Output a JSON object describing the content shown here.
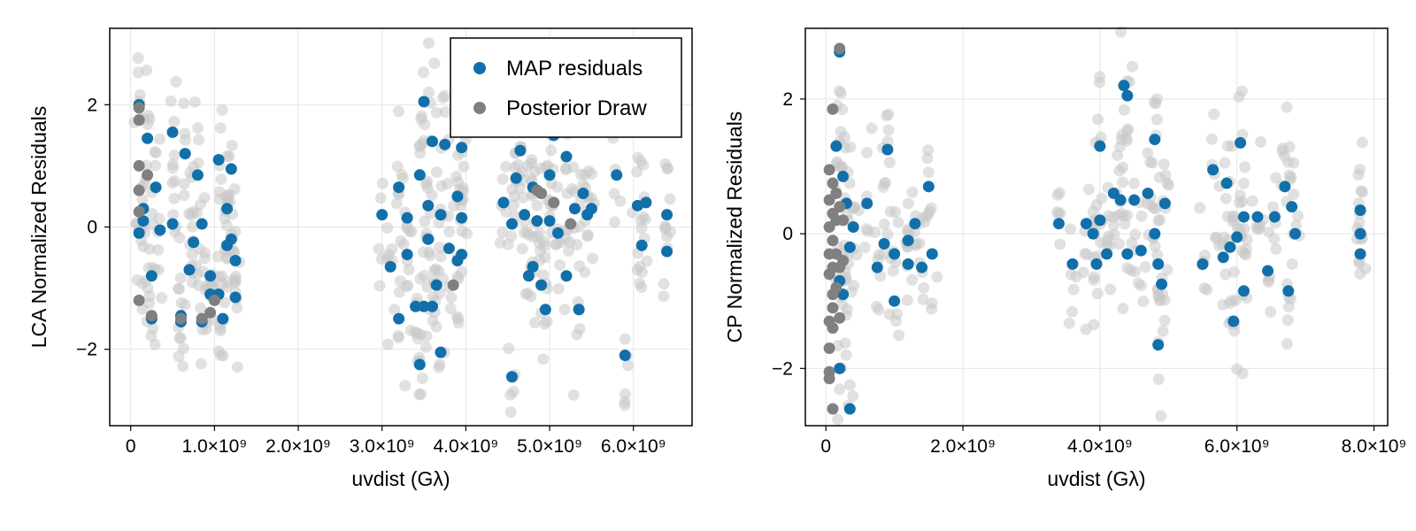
{
  "legend": {
    "entries": [
      {
        "label": "MAP residuals",
        "color": "#1170aa"
      },
      {
        "label": "Posterior Draw",
        "color": "#808080"
      }
    ],
    "placement": "top-right of left panel"
  },
  "colors": {
    "map": "#1170aa",
    "draw": "#808080",
    "cloud": "#c8c8c8",
    "grid": "#e5e5e5"
  },
  "chart_data": [
    {
      "type": "scatter",
      "xlabel": "uvdist (Gλ)",
      "ylabel": "LCA Normalized Residuals",
      "xlim": [
        -250000000.0,
        6700000000.0
      ],
      "ylim": [
        -3.25,
        3.25
      ],
      "xticks": [
        0,
        1000000000.0,
        2000000000.0,
        3000000000.0,
        4000000000.0,
        5000000000.0,
        6000000000.0
      ],
      "xtick_labels": [
        "0",
        "1.0×10⁹",
        "2.0×10⁹",
        "3.0×10⁹",
        "4.0×10⁹",
        "5.0×10⁹",
        "6.0×10⁹"
      ],
      "yticks": [
        -2,
        0,
        2
      ],
      "ytick_labels": [
        "−2",
        "0",
        "2"
      ],
      "grid": true,
      "series": [
        {
          "name": "MAP residuals",
          "points": [
            [
              100000000.0,
              2.0
            ],
            [
              100000000.0,
              -0.1
            ],
            [
              150000000.0,
              0.3
            ],
            [
              150000000.0,
              0.1
            ],
            [
              200000000.0,
              1.45
            ],
            [
              250000000.0,
              -0.8
            ],
            [
              250000000.0,
              -1.5
            ],
            [
              300000000.0,
              0.65
            ],
            [
              350000000.0,
              -0.05
            ],
            [
              500000000.0,
              1.55
            ],
            [
              500000000.0,
              0.05
            ],
            [
              600000000.0,
              -1.45
            ],
            [
              600000000.0,
              -1.55
            ],
            [
              650000000.0,
              1.2
            ],
            [
              700000000.0,
              -0.7
            ],
            [
              750000000.0,
              -0.25
            ],
            [
              800000000.0,
              0.85
            ],
            [
              850000000.0,
              0.05
            ],
            [
              850000000.0,
              -1.55
            ],
            [
              950000000.0,
              -0.8
            ],
            [
              950000000.0,
              -1.1
            ],
            [
              1050000000.0,
              1.1
            ],
            [
              1050000000.0,
              -1.1
            ],
            [
              1100000000.0,
              -1.5
            ],
            [
              1150000000.0,
              0.3
            ],
            [
              1150000000.0,
              -0.3
            ],
            [
              1200000000.0,
              0.95
            ],
            [
              1200000000.0,
              -0.2
            ],
            [
              1250000000.0,
              -0.55
            ],
            [
              1250000000.0,
              -1.15
            ],
            [
              3000000000.0,
              0.2
            ],
            [
              3100000000.0,
              -0.65
            ],
            [
              3200000000.0,
              -1.5
            ],
            [
              3200000000.0,
              0.65
            ],
            [
              3300000000.0,
              0.15
            ],
            [
              3300000000.0,
              -0.45
            ],
            [
              3400000000.0,
              -1.3
            ],
            [
              3450000000.0,
              0.85
            ],
            [
              3450000000.0,
              -2.25
            ],
            [
              3500000000.0,
              2.05
            ],
            [
              3500000000.0,
              -1.3
            ],
            [
              3550000000.0,
              0.35
            ],
            [
              3550000000.0,
              -0.2
            ],
            [
              3600000000.0,
              1.4
            ],
            [
              3600000000.0,
              -1.3
            ],
            [
              3650000000.0,
              -0.95
            ],
            [
              3700000000.0,
              0.2
            ],
            [
              3700000000.0,
              -2.05
            ],
            [
              3750000000.0,
              1.35
            ],
            [
              3800000000.0,
              -0.35
            ],
            [
              3900000000.0,
              0.5
            ],
            [
              3900000000.0,
              -0.55
            ],
            [
              3950000000.0,
              1.3
            ],
            [
              3950000000.0,
              0.15
            ],
            [
              3950000000.0,
              -0.45
            ],
            [
              4450000000.0,
              0.4
            ],
            [
              4550000000.0,
              0.05
            ],
            [
              4550000000.0,
              -2.45
            ],
            [
              4600000000.0,
              0.8
            ],
            [
              4650000000.0,
              1.25
            ],
            [
              4700000000.0,
              0.2
            ],
            [
              4750000000.0,
              -0.8
            ],
            [
              4800000000.0,
              0.65
            ],
            [
              4800000000.0,
              -0.65
            ],
            [
              4850000000.0,
              0.1
            ],
            [
              4900000000.0,
              -0.95
            ],
            [
              4950000000.0,
              -1.35
            ],
            [
              5000000000.0,
              0.85
            ],
            [
              5000000000.0,
              0.1
            ],
            [
              5050000000.0,
              1.5
            ],
            [
              5100000000.0,
              -0.1
            ],
            [
              5200000000.0,
              1.15
            ],
            [
              5200000000.0,
              -0.8
            ],
            [
              5300000000.0,
              0.3
            ],
            [
              5350000000.0,
              -1.35
            ],
            [
              5400000000.0,
              0.55
            ],
            [
              5450000000.0,
              0.2
            ],
            [
              5500000000.0,
              0.3
            ],
            [
              5800000000.0,
              0.85
            ],
            [
              5900000000.0,
              -2.1
            ],
            [
              6050000000.0,
              0.35
            ],
            [
              6100000000.0,
              -0.3
            ],
            [
              6150000000.0,
              0.4
            ],
            [
              6400000000.0,
              0.2
            ],
            [
              6400000000.0,
              -0.4
            ]
          ]
        },
        {
          "name": "Posterior Draw",
          "points": [
            [
              100000000.0,
              1.95
            ],
            [
              100000000.0,
              1.75
            ],
            [
              100000000.0,
              1.0
            ],
            [
              100000000.0,
              0.6
            ],
            [
              100000000.0,
              0.25
            ],
            [
              100000000.0,
              -1.2
            ],
            [
              200000000.0,
              0.85
            ],
            [
              250000000.0,
              -1.45
            ],
            [
              600000000.0,
              -1.5
            ],
            [
              850000000.0,
              -1.5
            ],
            [
              950000000.0,
              -1.4
            ],
            [
              1000000000.0,
              -1.2
            ],
            [
              3850000000.0,
              -0.95
            ],
            [
              4850000000.0,
              0.6
            ],
            [
              4900000000.0,
              0.55
            ],
            [
              5050000000.0,
              0.4
            ],
            [
              5250000000.0,
              0.05
            ]
          ]
        }
      ]
    },
    {
      "type": "scatter",
      "xlabel": "uvdist (Gλ)",
      "ylabel": "CP Normalized Residuals",
      "xlim": [
        -300000000.0,
        8200000000.0
      ],
      "ylim": [
        -2.85,
        3.05
      ],
      "xticks": [
        0,
        2000000000.0,
        4000000000.0,
        6000000000.0,
        8000000000.0
      ],
      "xtick_labels": [
        "0",
        "2.0×10⁹",
        "4.0×10⁹",
        "6.0×10⁹",
        "8.0×10⁹"
      ],
      "yticks": [
        -2,
        0,
        2
      ],
      "ytick_labels": [
        "−2",
        "0",
        "2"
      ],
      "grid": true,
      "series": [
        {
          "name": "MAP residuals",
          "points": [
            [
              150000000.0,
              1.3
            ],
            [
              200000000.0,
              2.7
            ],
            [
              200000000.0,
              -2.0
            ],
            [
              200000000.0,
              -0.7
            ],
            [
              250000000.0,
              0.85
            ],
            [
              250000000.0,
              -0.9
            ],
            [
              300000000.0,
              0.45
            ],
            [
              350000000.0,
              -0.2
            ],
            [
              350000000.0,
              -2.6
            ],
            [
              400000000.0,
              0.1
            ],
            [
              600000000.0,
              0.45
            ],
            [
              750000000.0,
              -0.5
            ],
            [
              850000000.0,
              -0.15
            ],
            [
              900000000.0,
              1.25
            ],
            [
              1000000000.0,
              -1.0
            ],
            [
              1000000000.0,
              -0.3
            ],
            [
              1200000000.0,
              -0.1
            ],
            [
              1200000000.0,
              -0.45
            ],
            [
              1300000000.0,
              0.15
            ],
            [
              1400000000.0,
              -0.5
            ],
            [
              1500000000.0,
              0.7
            ],
            [
              1550000000.0,
              -0.3
            ],
            [
              3400000000.0,
              0.15
            ],
            [
              3600000000.0,
              -0.45
            ],
            [
              3800000000.0,
              0.15
            ],
            [
              3900000000.0,
              0.0
            ],
            [
              3950000000.0,
              -0.45
            ],
            [
              4000000000.0,
              1.3
            ],
            [
              4000000000.0,
              0.2
            ],
            [
              4100000000.0,
              -0.3
            ],
            [
              4200000000.0,
              0.6
            ],
            [
              4300000000.0,
              0.5
            ],
            [
              4350000000.0,
              2.2
            ],
            [
              4400000000.0,
              2.05
            ],
            [
              4400000000.0,
              -0.3
            ],
            [
              4500000000.0,
              0.5
            ],
            [
              4600000000.0,
              -0.25
            ],
            [
              4700000000.0,
              0.6
            ],
            [
              4800000000.0,
              1.4
            ],
            [
              4800000000.0,
              0.0
            ],
            [
              4850000000.0,
              -0.45
            ],
            [
              4850000000.0,
              -1.65
            ],
            [
              4900000000.0,
              -0.75
            ],
            [
              4950000000.0,
              0.45
            ],
            [
              5500000000.0,
              -0.45
            ],
            [
              5650000000.0,
              0.95
            ],
            [
              5800000000.0,
              -0.35
            ],
            [
              5850000000.0,
              0.75
            ],
            [
              5900000000.0,
              -0.2
            ],
            [
              5950000000.0,
              -1.3
            ],
            [
              6000000000.0,
              -0.05
            ],
            [
              6050000000.0,
              1.35
            ],
            [
              6100000000.0,
              0.25
            ],
            [
              6100000000.0,
              -0.85
            ],
            [
              6300000000.0,
              0.25
            ],
            [
              6450000000.0,
              -0.55
            ],
            [
              6550000000.0,
              0.25
            ],
            [
              6700000000.0,
              0.7
            ],
            [
              6750000000.0,
              -0.85
            ],
            [
              6800000000.0,
              0.4
            ],
            [
              6850000000.0,
              0.0
            ],
            [
              7800000000.0,
              0.35
            ],
            [
              7800000000.0,
              0.0
            ],
            [
              7800000000.0,
              -0.3
            ]
          ]
        },
        {
          "name": "Posterior Draw",
          "points": [
            [
              50000000.0,
              0.95
            ],
            [
              50000000.0,
              0.5
            ],
            [
              50000000.0,
              0.1
            ],
            [
              50000000.0,
              -0.3
            ],
            [
              50000000.0,
              -0.6
            ],
            [
              50000000.0,
              -1.3
            ],
            [
              50000000.0,
              -1.7
            ],
            [
              50000000.0,
              -2.05
            ],
            [
              50000000.0,
              -2.15
            ],
            [
              100000000.0,
              1.85
            ],
            [
              100000000.0,
              0.75
            ],
            [
              100000000.0,
              0.3
            ],
            [
              100000000.0,
              -0.1
            ],
            [
              100000000.0,
              -0.5
            ],
            [
              100000000.0,
              -0.9
            ],
            [
              100000000.0,
              -1.1
            ],
            [
              100000000.0,
              -1.4
            ],
            [
              100000000.0,
              -2.6
            ],
            [
              150000000.0,
              0.6
            ],
            [
              150000000.0,
              0.2
            ],
            [
              150000000.0,
              -0.3
            ],
            [
              150000000.0,
              -0.8
            ],
            [
              200000000.0,
              2.75
            ],
            [
              200000000.0,
              0.4
            ],
            [
              200000000.0,
              -0.5
            ],
            [
              200000000.0,
              -1.25
            ],
            [
              250000000.0,
              0.2
            ],
            [
              250000000.0,
              -0.4
            ]
          ]
        }
      ]
    }
  ]
}
